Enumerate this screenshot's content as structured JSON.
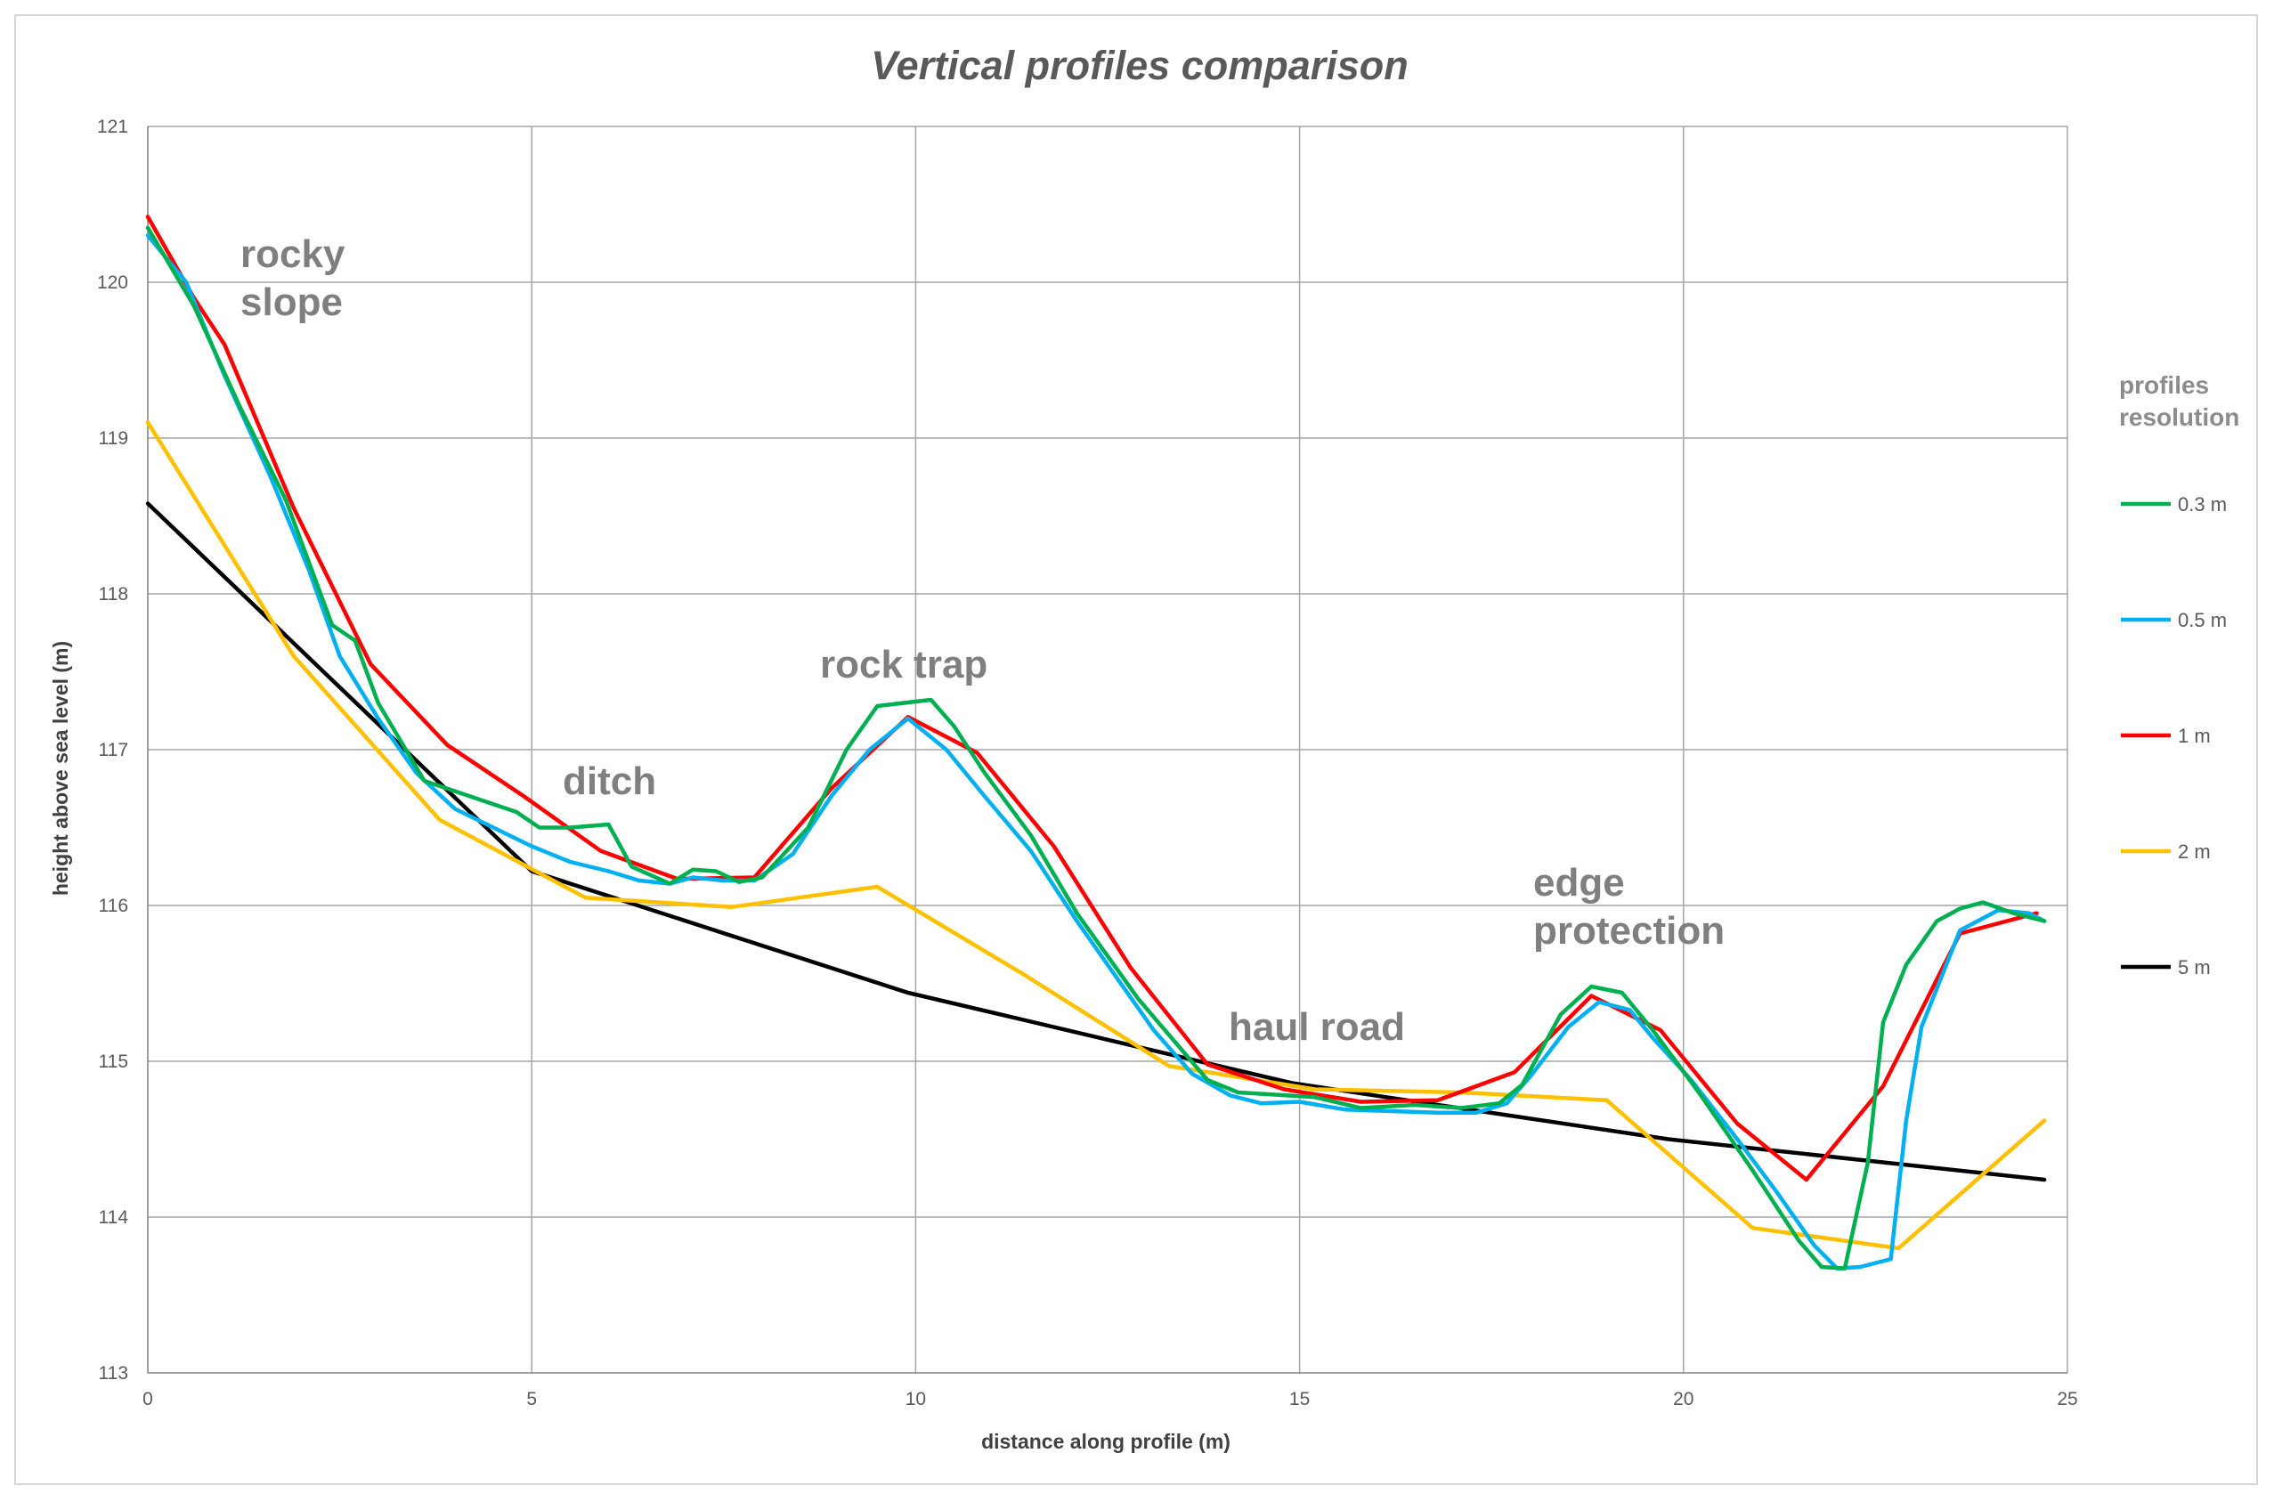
{
  "chart_data": {
    "type": "line",
    "title": "Vertical profiles comparison",
    "xlabel": "distance along profile (m)",
    "ylabel": "height above sea level (m)",
    "xlim": [
      0,
      25
    ],
    "ylim": [
      113,
      121
    ],
    "xticks": [
      0,
      5,
      10,
      15,
      20,
      25
    ],
    "yticks": [
      113,
      114,
      115,
      116,
      117,
      118,
      119,
      120,
      121
    ],
    "grid": true,
    "legend": {
      "title_lines": [
        "profiles",
        "resolution"
      ],
      "position": "right"
    },
    "series": [
      {
        "name": "0.3 m",
        "color": "#00b050",
        "points": [
          [
            0,
            120.35
          ],
          [
            0.6,
            119.85
          ],
          [
            1.2,
            119.2
          ],
          [
            1.8,
            118.6
          ],
          [
            2.4,
            117.8
          ],
          [
            2.7,
            117.7
          ],
          [
            3.0,
            117.3
          ],
          [
            3.6,
            116.8
          ],
          [
            4.2,
            116.7
          ],
          [
            4.8,
            116.6
          ],
          [
            5.1,
            116.5
          ],
          [
            5.5,
            116.5
          ],
          [
            6.0,
            116.52
          ],
          [
            6.3,
            116.25
          ],
          [
            6.8,
            116.14
          ],
          [
            7.1,
            116.23
          ],
          [
            7.4,
            116.22
          ],
          [
            7.7,
            116.15
          ],
          [
            8.0,
            116.18
          ],
          [
            8.6,
            116.5
          ],
          [
            9.1,
            117.0
          ],
          [
            9.5,
            117.28
          ],
          [
            10.2,
            117.32
          ],
          [
            10.5,
            117.15
          ],
          [
            10.9,
            116.85
          ],
          [
            11.5,
            116.45
          ],
          [
            12.1,
            115.95
          ],
          [
            12.9,
            115.4
          ],
          [
            13.8,
            114.88
          ],
          [
            14.2,
            114.8
          ],
          [
            15.2,
            114.77
          ],
          [
            15.8,
            114.7
          ],
          [
            16.5,
            114.72
          ],
          [
            17.1,
            114.7
          ],
          [
            17.6,
            114.73
          ],
          [
            17.9,
            114.85
          ],
          [
            18.4,
            115.3
          ],
          [
            18.8,
            115.48
          ],
          [
            19.2,
            115.44
          ],
          [
            19.6,
            115.2
          ],
          [
            20.2,
            114.8
          ],
          [
            20.9,
            114.3
          ],
          [
            21.5,
            113.85
          ],
          [
            21.8,
            113.68
          ],
          [
            22.1,
            113.67
          ],
          [
            22.4,
            114.35
          ],
          [
            22.6,
            115.25
          ],
          [
            22.9,
            115.62
          ],
          [
            23.3,
            115.9
          ],
          [
            23.6,
            115.98
          ],
          [
            23.9,
            116.02
          ],
          [
            24.3,
            115.95
          ],
          [
            24.7,
            115.9
          ]
        ]
      },
      {
        "name": "0.5 m",
        "color": "#00b0f0",
        "points": [
          [
            0,
            120.3
          ],
          [
            0.5,
            120.0
          ],
          [
            1.0,
            119.4
          ],
          [
            1.6,
            118.75
          ],
          [
            2.1,
            118.15
          ],
          [
            2.5,
            117.6
          ],
          [
            3.0,
            117.2
          ],
          [
            3.5,
            116.85
          ],
          [
            4.0,
            116.62
          ],
          [
            4.5,
            116.5
          ],
          [
            5.0,
            116.38
          ],
          [
            5.5,
            116.28
          ],
          [
            6.0,
            116.22
          ],
          [
            6.4,
            116.16
          ],
          [
            6.8,
            116.14
          ],
          [
            7.1,
            116.18
          ],
          [
            7.5,
            116.16
          ],
          [
            7.9,
            116.16
          ],
          [
            8.4,
            116.33
          ],
          [
            8.9,
            116.7
          ],
          [
            9.4,
            117.0
          ],
          [
            9.9,
            117.2
          ],
          [
            10.4,
            117.0
          ],
          [
            10.9,
            116.7
          ],
          [
            11.5,
            116.35
          ],
          [
            12.1,
            115.9
          ],
          [
            12.6,
            115.55
          ],
          [
            13.1,
            115.2
          ],
          [
            13.6,
            114.92
          ],
          [
            14.1,
            114.78
          ],
          [
            14.5,
            114.73
          ],
          [
            15.0,
            114.74
          ],
          [
            15.6,
            114.69
          ],
          [
            16.2,
            114.68
          ],
          [
            16.8,
            114.67
          ],
          [
            17.3,
            114.67
          ],
          [
            17.7,
            114.73
          ],
          [
            18.0,
            114.9
          ],
          [
            18.5,
            115.22
          ],
          [
            18.9,
            115.38
          ],
          [
            19.3,
            115.33
          ],
          [
            19.6,
            115.15
          ],
          [
            20.1,
            114.88
          ],
          [
            20.7,
            114.5
          ],
          [
            21.2,
            114.17
          ],
          [
            21.7,
            113.82
          ],
          [
            22.0,
            113.67
          ],
          [
            22.3,
            113.68
          ],
          [
            22.7,
            113.73
          ],
          [
            22.9,
            114.62
          ],
          [
            23.1,
            115.22
          ],
          [
            23.6,
            115.84
          ],
          [
            24.1,
            115.97
          ],
          [
            24.5,
            115.95
          ],
          [
            24.7,
            115.9
          ]
        ]
      },
      {
        "name": "1 m",
        "color": "#ff0000",
        "points": [
          [
            0,
            120.42
          ],
          [
            0.6,
            119.9
          ],
          [
            1.0,
            119.6
          ],
          [
            1.9,
            118.55
          ],
          [
            2.9,
            117.55
          ],
          [
            3.9,
            117.03
          ],
          [
            4.9,
            116.7
          ],
          [
            5.9,
            116.35
          ],
          [
            6.9,
            116.17
          ],
          [
            7.9,
            116.18
          ],
          [
            8.9,
            116.75
          ],
          [
            9.9,
            117.21
          ],
          [
            10.8,
            116.98
          ],
          [
            11.8,
            116.38
          ],
          [
            12.8,
            115.6
          ],
          [
            13.8,
            114.98
          ],
          [
            14.8,
            114.82
          ],
          [
            15.8,
            114.74
          ],
          [
            16.8,
            114.75
          ],
          [
            17.8,
            114.93
          ],
          [
            18.8,
            115.42
          ],
          [
            19.7,
            115.2
          ],
          [
            20.7,
            114.6
          ],
          [
            21.6,
            114.24
          ],
          [
            22.6,
            114.84
          ],
          [
            23.6,
            115.82
          ],
          [
            24.6,
            115.95
          ]
        ]
      },
      {
        "name": "2 m",
        "color": "#ffc000",
        "points": [
          [
            0,
            119.1
          ],
          [
            1.9,
            117.6
          ],
          [
            3.8,
            116.55
          ],
          [
            5.7,
            116.05
          ],
          [
            7.6,
            115.99
          ],
          [
            9.5,
            116.12
          ],
          [
            11.4,
            115.56
          ],
          [
            13.3,
            114.97
          ],
          [
            15.2,
            114.82
          ],
          [
            17.1,
            114.8
          ],
          [
            19.0,
            114.75
          ],
          [
            20.9,
            113.93
          ],
          [
            22.8,
            113.8
          ],
          [
            24.7,
            114.62
          ]
        ]
      },
      {
        "name": "5 m",
        "color": "#000000",
        "points": [
          [
            0,
            118.58
          ],
          [
            5.0,
            116.22
          ],
          [
            9.9,
            115.44
          ],
          [
            14.9,
            114.86
          ],
          [
            19.8,
            114.5
          ],
          [
            24.7,
            114.24
          ]
        ]
      }
    ],
    "annotations": [
      {
        "lines": [
          "rocky",
          "slope"
        ]
      },
      {
        "lines": [
          "ditch"
        ]
      },
      {
        "lines": [
          "rock trap"
        ]
      },
      {
        "lines": [
          "haul road"
        ]
      },
      {
        "lines": [
          "edge",
          "protection"
        ]
      }
    ]
  }
}
